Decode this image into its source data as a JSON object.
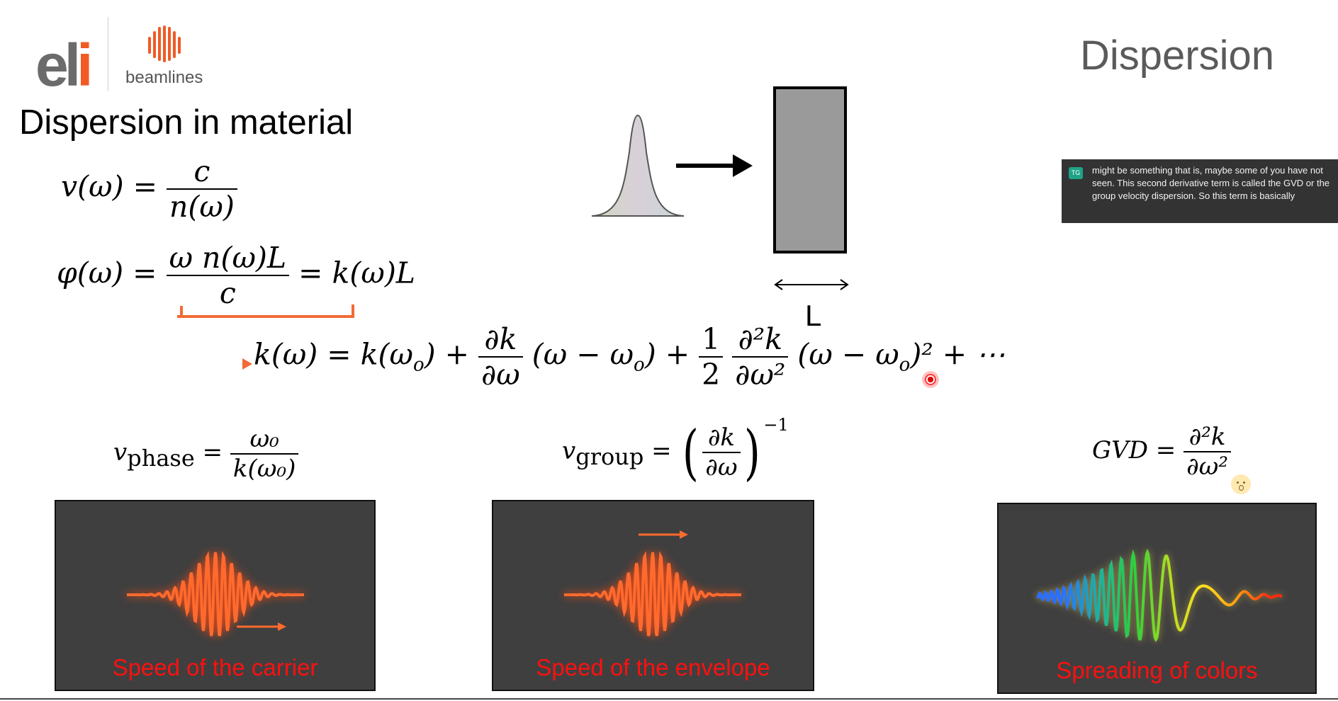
{
  "logo": {
    "text_main": "el",
    "text_accent": "i",
    "subtitle": "beamlines",
    "accent_color": "#f05a24"
  },
  "slide": {
    "header": "Dispersion",
    "section_title": "Dispersion in material"
  },
  "equations": {
    "velocity": {
      "lhs": "v(ω) =",
      "num": "c",
      "den": "n(ω)"
    },
    "phase_accum": {
      "lhs": "φ(ω) =",
      "num": "ω n(ω)L",
      "den": "c",
      "rhs": "= k(ω)L"
    },
    "taylor": {
      "lhs": "k(ω) = k(ω",
      "lhs_sub": "o",
      "lhs_close": ") +",
      "d1_num": "∂k",
      "d1_den": "∂ω",
      "term1": "(ω − ω",
      "term1_sub": "o",
      "term1_close": ") +",
      "half_num": "1",
      "half_den": "2",
      "d2_num": "∂²k",
      "d2_den": "∂ω²",
      "term2": "(ω − ω",
      "term2_sub": "o",
      "term2_close": ")² + ⋯"
    },
    "phase_velocity": {
      "v": "v",
      "sub": "phase",
      "eq": "=",
      "num": "ω₀",
      "den": "k(ω₀)"
    },
    "group_velocity": {
      "v": "v",
      "sub": "group",
      "eq": "=",
      "num": "∂k",
      "den": "∂ω",
      "exp": "−1"
    },
    "gvd": {
      "lhs": "GVD =",
      "num": "∂²k",
      "den": "∂ω²"
    }
  },
  "diagram": {
    "length_label": "L"
  },
  "panels": [
    {
      "caption": "Speed of the carrier"
    },
    {
      "caption": "Speed of the envelope"
    },
    {
      "caption": "Spreading of colors"
    }
  ],
  "caption_overlay": {
    "avatar": "TG",
    "text": "might be something that is, maybe some of you have not seen. This second derivative term is called the GVD or the group velocity dispersion. So this term is basically"
  },
  "colors": {
    "arrow_orange": "#f26a35",
    "wave_orange": "#ff6a2e",
    "panel_bg": "#3f3f3f",
    "caption_red": "#ff1010"
  },
  "icons": [
    "laser-pointer-icon",
    "surprised-face-icon",
    "beamlines-logo-icon"
  ]
}
